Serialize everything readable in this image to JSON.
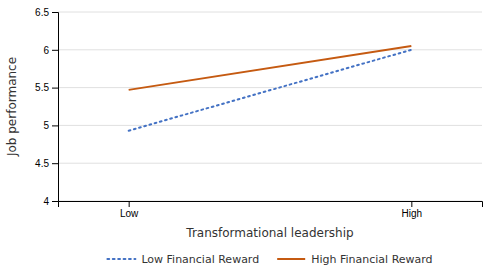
{
  "chart_data": {
    "type": "line",
    "x_label": "Transformational leadership",
    "y_label": "Job performance",
    "categories": [
      "Low",
      "High"
    ],
    "series": [
      {
        "name": "Low Financial Reward",
        "color": "#4472C4",
        "line_style": "dotted",
        "values": [
          4.93,
          6.0
        ]
      },
      {
        "name": "High Financial Reward",
        "color": "#C55A11",
        "line_style": "solid",
        "values": [
          5.47,
          6.05
        ]
      }
    ],
    "ylim": [
      4,
      6.5
    ],
    "yticks": [
      4,
      4.5,
      5,
      5.5,
      6,
      6.5
    ],
    "grid": true,
    "legend": "bottom"
  }
}
